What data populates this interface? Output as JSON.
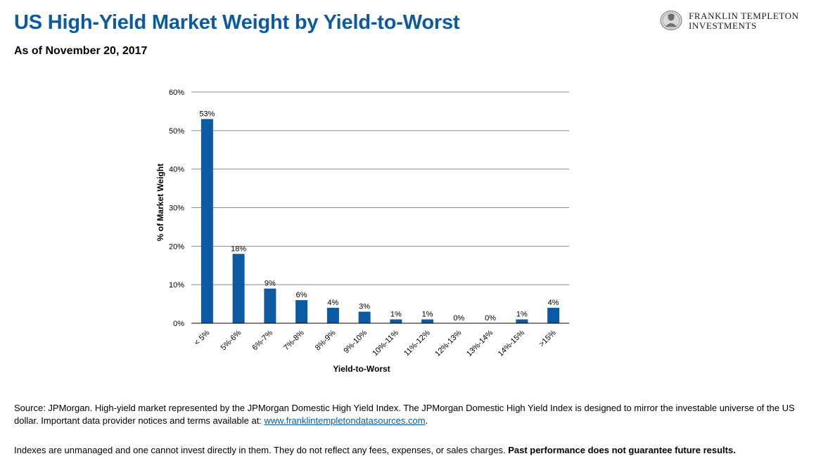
{
  "header": {
    "title": "US High-Yield Market Weight by Yield-to-Worst",
    "subtitle": "As of November 20, 2017"
  },
  "logo": {
    "line1": "FRANKLIN TEMPLETON",
    "line2": "INVESTMENTS",
    "icon": "franklin-portrait-seal"
  },
  "chart_data": {
    "type": "bar",
    "categories": [
      "< 5%",
      "5%-6%",
      "6%-7%",
      "7%-8%",
      "8%-9%",
      "9%-10%",
      "10%-11%",
      "11%-12%",
      "12%-13%",
      "13%-14%",
      "14%-15%",
      ">15%"
    ],
    "values": [
      53,
      18,
      9,
      6,
      4,
      3,
      1,
      1,
      0,
      0,
      1,
      4
    ],
    "data_labels": [
      "53%",
      "18%",
      "9%",
      "6%",
      "4%",
      "3%",
      "1%",
      "1%",
      "0%",
      "0%",
      "1%",
      "4%"
    ],
    "xlabel": "Yield-to-Worst",
    "ylabel": "% of Market Weight",
    "ylim": [
      0,
      60
    ],
    "yticks": [
      0,
      10,
      20,
      30,
      40,
      50,
      60
    ],
    "ytick_labels": [
      "0%",
      "10%",
      "20%",
      "30%",
      "40%",
      "50%",
      "60%"
    ],
    "grid": true,
    "legend": "none",
    "bar_color": "#0b5aa2",
    "grid_color": "#8c8c8c"
  },
  "footer": {
    "source_text": "Source: JPMorgan. High-yield market represented by the JPMorgan Domestic High Yield Index. The JPMorgan Domestic High Yield Index is designed to mirror the investable universe of the US dollar. Important data provider notices and terms available at: ",
    "source_link": "www.franklintempletondatasources.com",
    "source_end": ".",
    "disclaimer_text": "Indexes are unmanaged and one cannot invest directly in them. They do not reflect any fees, expenses, or sales charges. ",
    "disclaimer_bold": "Past performance does not guarantee future results."
  }
}
